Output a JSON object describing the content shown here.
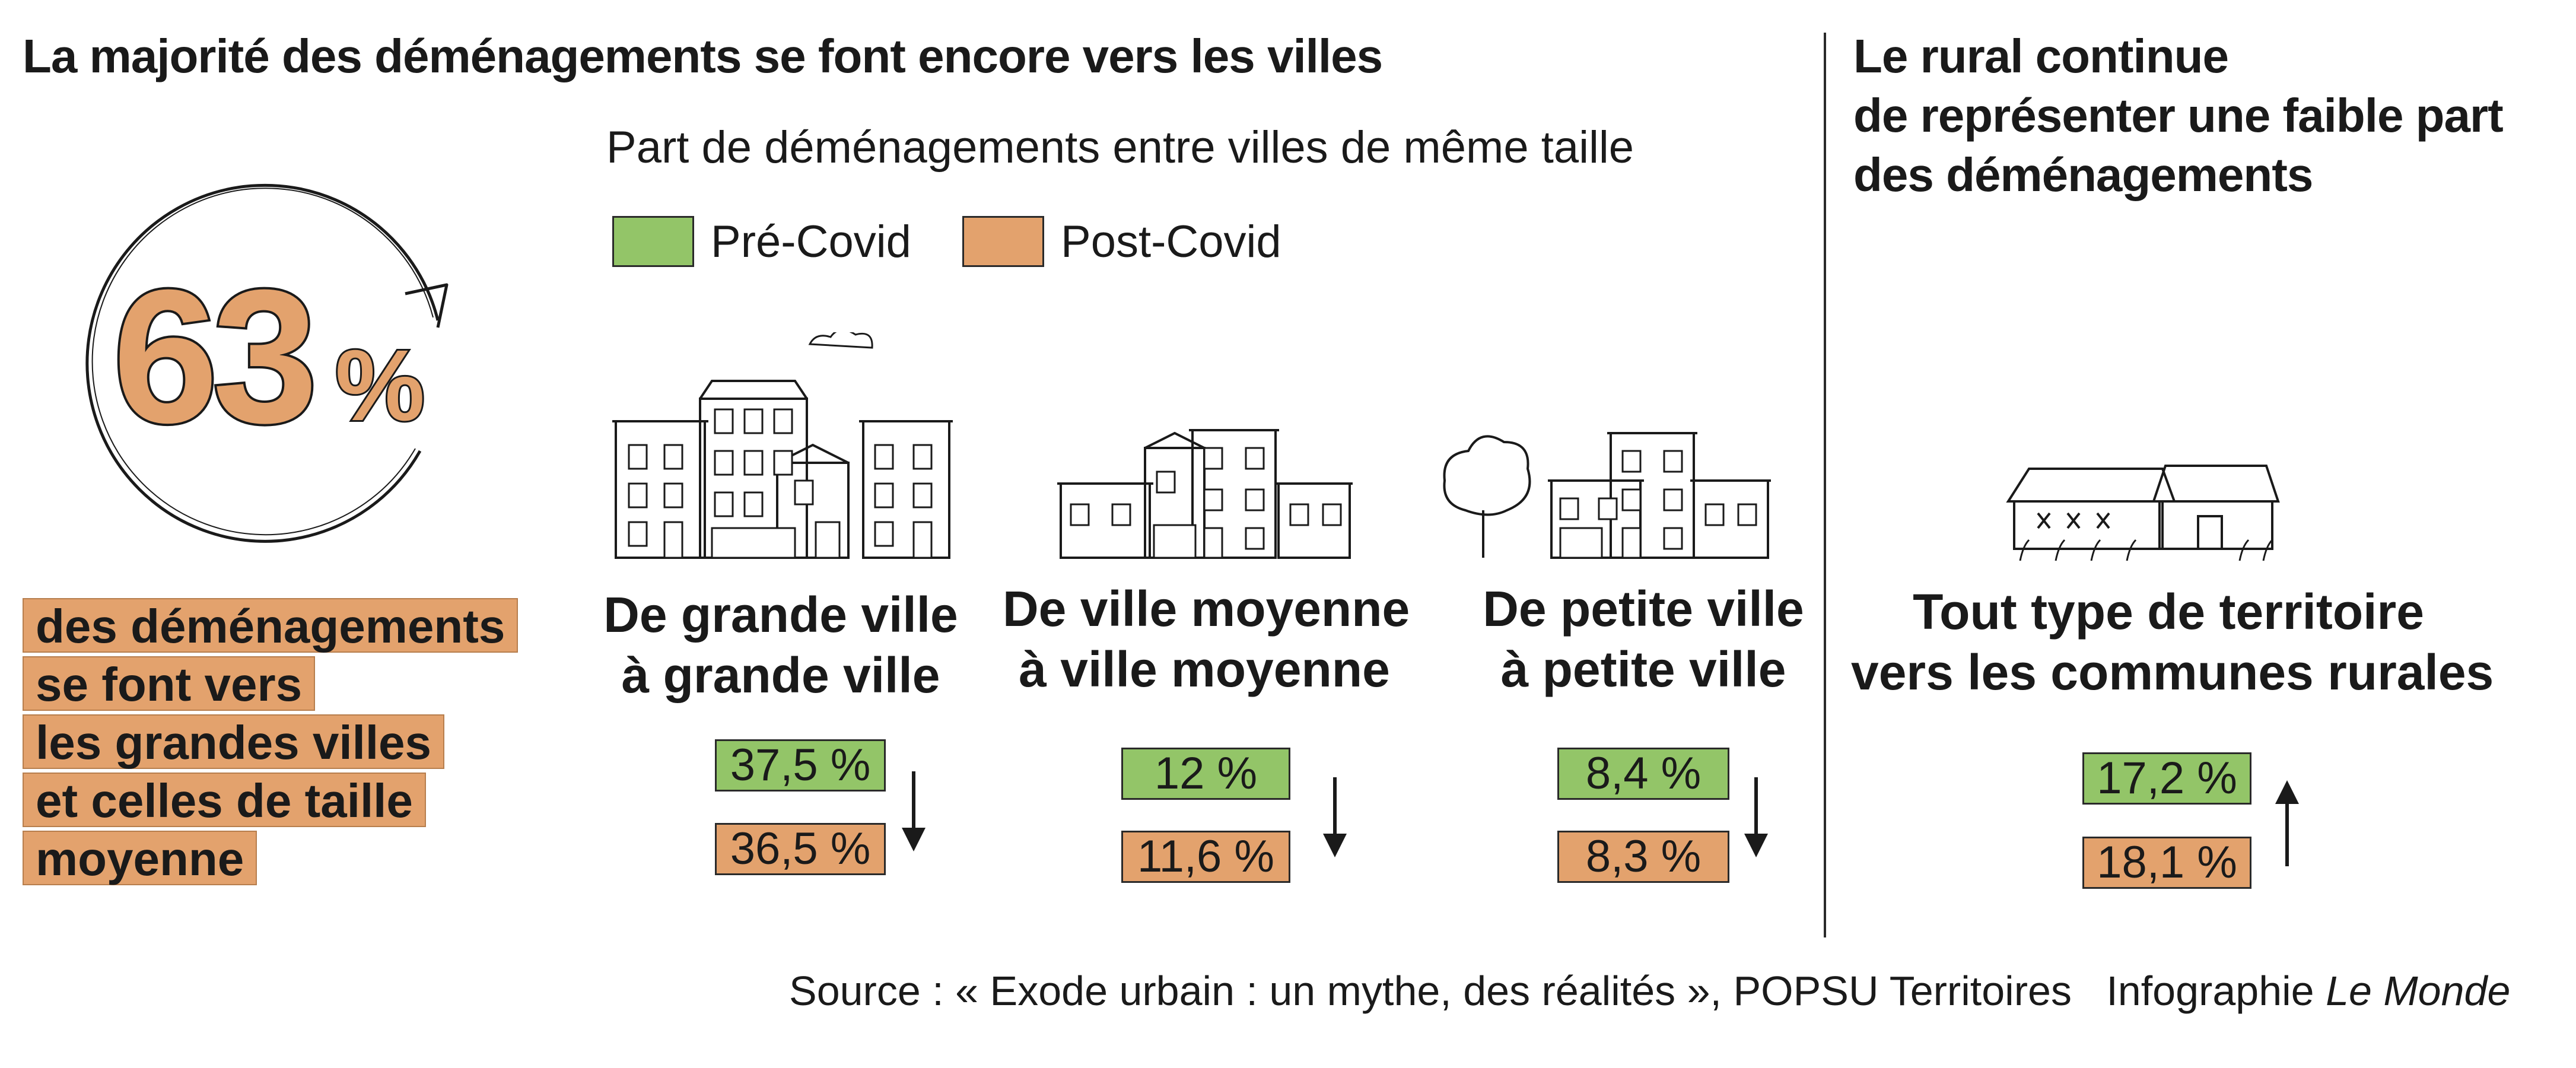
{
  "title_left": "La majorité des déménagements se font encore vers les villes",
  "title_right": [
    "Le rural continue",
    "de représenter une faible part",
    "des déménagements"
  ],
  "colors": {
    "pre_covid": "#93c568",
    "post_covid": "#e3a26d",
    "ink": "#1a1a1a"
  },
  "highlight": {
    "value": "63",
    "unit": "%",
    "lines": [
      "des déménagements",
      "se font vers",
      "les grandes villes",
      "et celles de taille",
      "moyenne"
    ]
  },
  "chart_data": {
    "type": "table",
    "title": "Part de déménagements entre villes de même taille",
    "series": [
      {
        "name": "Pré-Covid",
        "values": [
          37.5,
          12,
          8.4,
          17.2
        ]
      },
      {
        "name": "Post-Covid",
        "values": [
          36.5,
          11.6,
          8.3,
          18.1
        ]
      }
    ],
    "categories": [
      {
        "lines": [
          "De grande ville",
          "à grande ville"
        ],
        "pre": "37,5 %",
        "post": "36,5 %",
        "trend": "down",
        "icon": "large-city-buildings"
      },
      {
        "lines": [
          "De ville moyenne",
          "à ville moyenne"
        ],
        "pre": "12 %",
        "post": "11,6 %",
        "trend": "down",
        "icon": "medium-town-buildings"
      },
      {
        "lines": [
          "De petite ville",
          "à petite ville"
        ],
        "pre": "8,4 %",
        "post": "8,3 %",
        "trend": "down",
        "icon": "small-town-buildings"
      },
      {
        "lines": [
          "Tout type de territoire",
          "vers les communes rurales"
        ],
        "pre": "17,2 %",
        "post": "18,1 %",
        "trend": "up",
        "icon": "rural-houses"
      }
    ]
  },
  "source": {
    "text": "Source : « Exode urbain : un mythe, des réalités », POPSU Territoires",
    "credit": "Infographie",
    "credit_brand": "Le Monde"
  }
}
